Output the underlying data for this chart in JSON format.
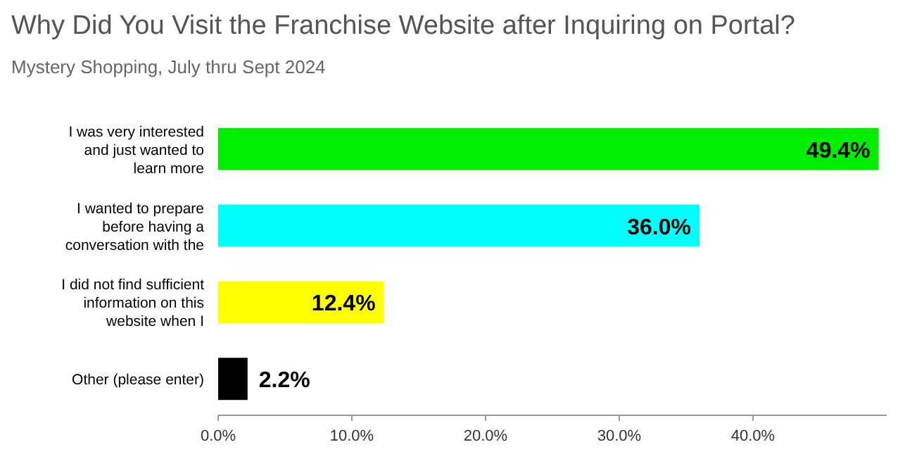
{
  "chart_data": {
    "type": "bar",
    "orientation": "horizontal",
    "title": "Why Did You Visit the Franchise Website after Inquiring on Portal?",
    "subtitle": "Mystery Shopping, July thru Sept 2024",
    "categories": [
      "I was very interested\nand just wanted to\nlearn more",
      "I wanted to prepare\nbefore having a\nconversation with the",
      "I did not find sufficient\ninformation on this\nwebsite when I",
      "Other (please enter)"
    ],
    "values": [
      49.4,
      36.0,
      12.4,
      2.2
    ],
    "colors": [
      "#00ee00",
      "#00ffff",
      "#ffff00",
      "#000000"
    ],
    "value_labels": [
      "49.4%",
      "36.0%",
      "12.4%",
      "2.2%"
    ],
    "xlim": [
      0,
      50
    ],
    "xticks": [
      {
        "value": 0,
        "label": "0.0%"
      },
      {
        "value": 10,
        "label": "10.0%"
      },
      {
        "value": 20,
        "label": "20.0%"
      },
      {
        "value": 30,
        "label": "30.0%"
      },
      {
        "value": 40,
        "label": "40.0%"
      }
    ],
    "grid": false
  }
}
